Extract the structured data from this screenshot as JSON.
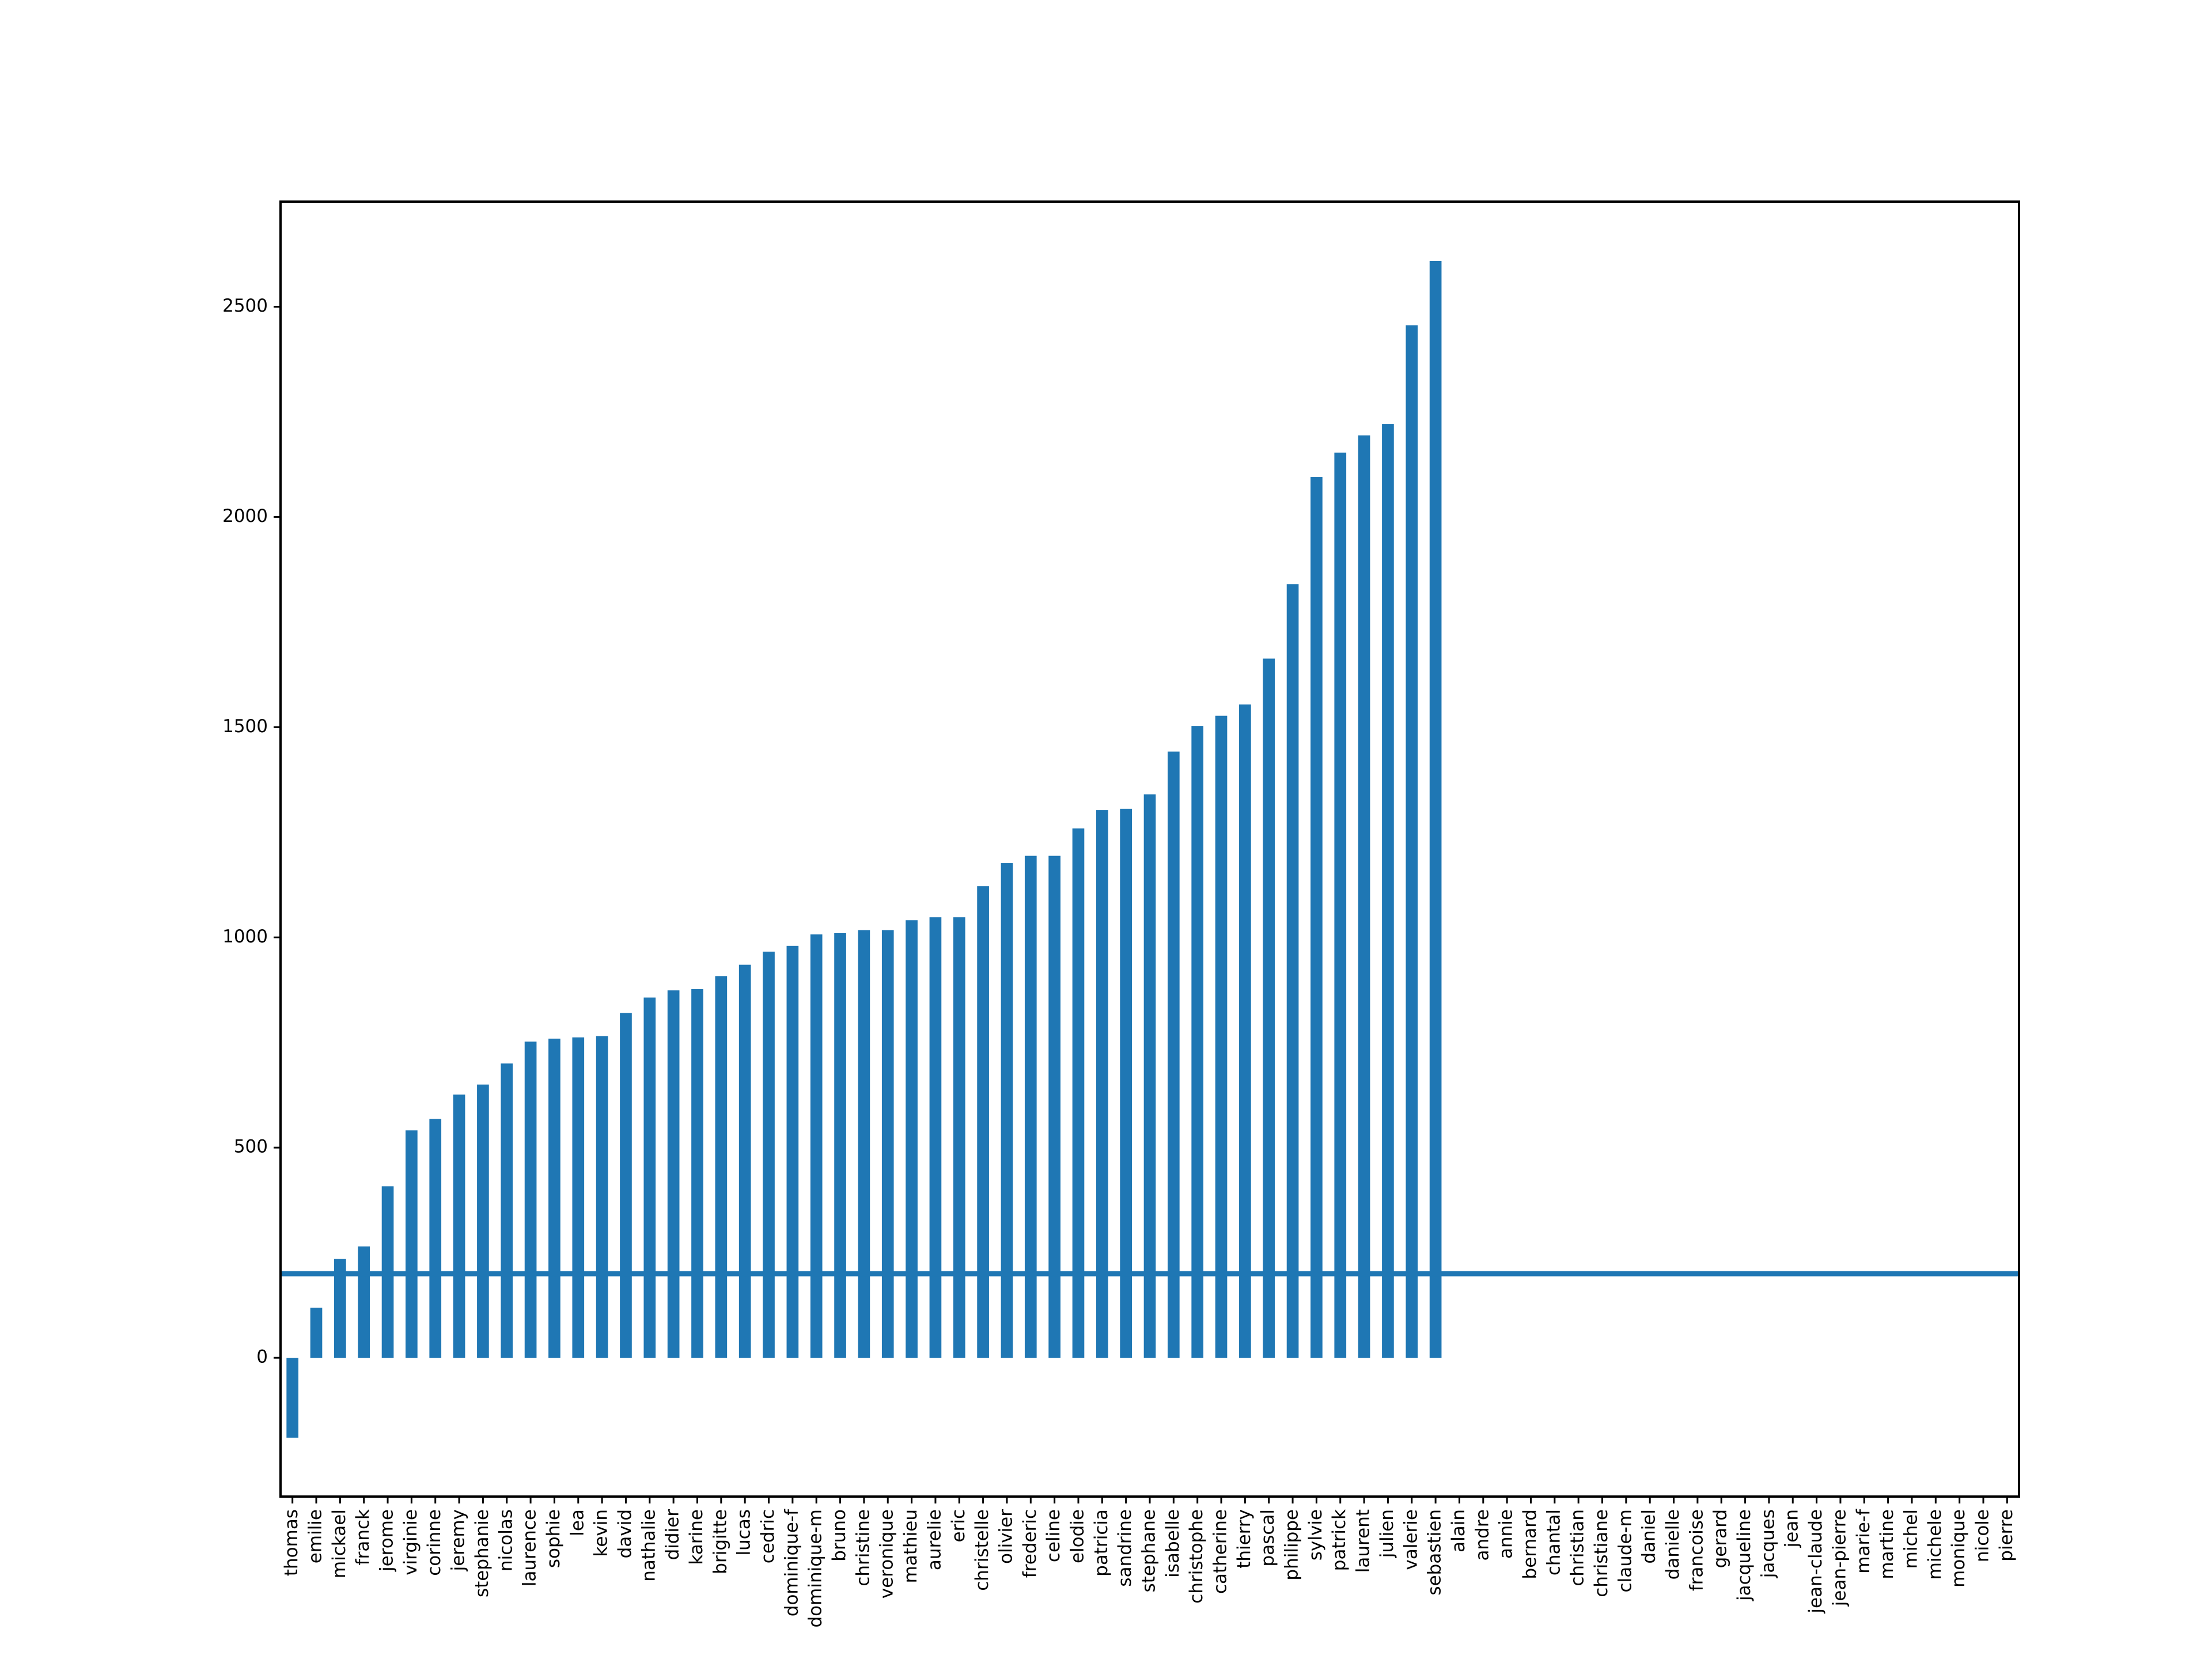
{
  "chart_data": {
    "type": "bar",
    "categories": [
      "thomas",
      "emilie",
      "mickael",
      "franck",
      "jerome",
      "virginie",
      "corinne",
      "jeremy",
      "stephanie",
      "nicolas",
      "laurence",
      "sophie",
      "lea",
      "kevin",
      "david",
      "nathalie",
      "didier",
      "karine",
      "brigitte",
      "lucas",
      "cedric",
      "dominique-f",
      "dominique-m",
      "bruno",
      "christine",
      "veronique",
      "mathieu",
      "aurelie",
      "eric",
      "christelle",
      "olivier",
      "frederic",
      "celine",
      "elodie",
      "patricia",
      "sandrine",
      "stephane",
      "isabelle",
      "christophe",
      "catherine",
      "thierry",
      "pascal",
      "philippe",
      "sylvie",
      "patrick",
      "laurent",
      "julien",
      "valerie",
      "sebastien",
      "alain",
      "andre",
      "annie",
      "bernard",
      "chantal",
      "christian",
      "christiane",
      "claude-m",
      "daniel",
      "danielle",
      "francoise",
      "gerard",
      "jacqueline",
      "jacques",
      "jean",
      "jean-claude",
      "jean-pierre",
      "marie-f",
      "martine",
      "michel",
      "michele",
      "monique",
      "nicole",
      "pierre"
    ],
    "values": [
      -190,
      119,
      235,
      265,
      408,
      541,
      568,
      626,
      650,
      700,
      752,
      759,
      762,
      765,
      820,
      857,
      874,
      877,
      908,
      935,
      966,
      980,
      1007,
      1010,
      1017,
      1017,
      1041,
      1048,
      1048,
      1122,
      1177,
      1194,
      1194,
      1259,
      1303,
      1306,
      1340,
      1442,
      1503,
      1527,
      1554,
      1663,
      1840,
      2095,
      2153,
      2194,
      2221,
      2456,
      2609,
      0,
      0,
      0,
      0,
      0,
      0,
      0,
      0,
      0,
      0,
      0,
      0,
      0,
      0,
      0,
      0,
      0,
      0,
      0,
      0,
      0,
      0,
      0,
      0
    ],
    "color": "#1f77b4",
    "hline": 200,
    "ylim": [
      -330,
      2750
    ],
    "yticks": [
      0,
      500,
      1000,
      1500,
      2000,
      2500
    ]
  }
}
